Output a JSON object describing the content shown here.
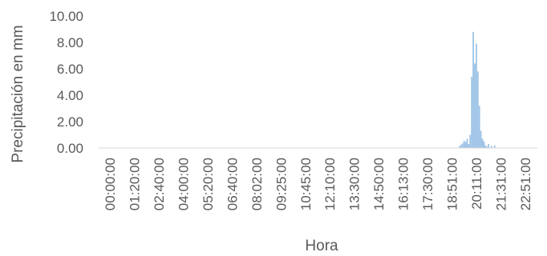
{
  "chart_data": {
    "type": "bar",
    "xlabel": "Hora",
    "ylabel": "Precipitación en mm",
    "ylim": [
      0,
      10
    ],
    "y_ticks": [
      "0.00",
      "2.00",
      "4.00",
      "6.00",
      "8.00",
      "10.00"
    ],
    "x_tick_labels": [
      "00:00:00",
      "01:20:00",
      "02:40:00",
      "04:00:00",
      "05:20:00",
      "06:40:00",
      "08:02:00",
      "09:25:00",
      "10:45:00",
      "12:10:00",
      "13:30:00",
      "14:50:00",
      "16:13:00",
      "17:30:00",
      "18:51:00",
      "20:11:00",
      "21:31:00",
      "22:51:00"
    ],
    "x_range": [
      "00:00:00",
      "24:00:00"
    ],
    "bar_color": "#9dc3e6",
    "grid": false,
    "legend": "none",
    "series": [
      {
        "x": [
          "19:45:00",
          "19:50:00",
          "19:55:00",
          "20:00:00",
          "20:05:00",
          "20:10:00",
          "20:15:00",
          "20:20:00",
          "20:25:00",
          "20:30:00",
          "20:35:00",
          "20:40:00",
          "20:45:00",
          "20:50:00",
          "20:55:00",
          "21:00:00",
          "21:05:00",
          "21:10:00",
          "21:15:00",
          "21:20:00",
          "21:30:00",
          "21:40:00"
        ],
        "values": [
          0.15,
          0.25,
          0.35,
          0.55,
          0.45,
          0.7,
          0.3,
          1.0,
          5.4,
          8.8,
          6.4,
          7.9,
          5.8,
          3.2,
          1.3,
          0.7,
          0.5,
          0.2,
          0.1,
          0.3,
          0.15,
          0.2
        ]
      }
    ]
  }
}
